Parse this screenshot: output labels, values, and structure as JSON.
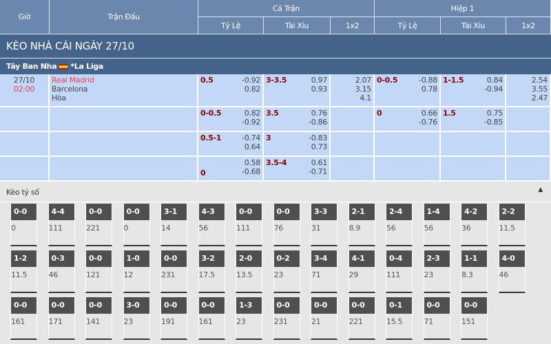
{
  "header": {
    "time": "Giờ",
    "match": "Trận Đấu",
    "full": "Cả Trận",
    "half": "Hiệp 1",
    "cols": [
      "Tỷ Lệ",
      "Tài Xỉu",
      "1x2",
      "Tỷ Lệ",
      "Tài Xỉu",
      "1x2"
    ]
  },
  "title": "KÈO NHÀ CÁI NGÀY 27/10",
  "league": {
    "country": "Tây Ban Nha",
    "name": "*La Liga",
    "flag": "spain-flag-icon"
  },
  "match": {
    "date": "27/10",
    "time": "02:00",
    "home": "Real Madrid",
    "away": "Barcelona",
    "draw": "Hòa"
  },
  "rows": [
    {
      "hdp": "0.5",
      "hdp_odds": [
        "-0.92",
        "0.82"
      ],
      "ou": "3-3.5",
      "ou_odds": [
        "0.97",
        "0.93"
      ],
      "x12": [
        "2.07",
        "3.15",
        "4.1"
      ],
      "h_hdp": "0-0.5",
      "h_hdp_odds": [
        "-0.88",
        "0.78"
      ],
      "h_ou": "1-1.5",
      "h_ou_odds": [
        "0.84",
        "-0.94"
      ],
      "h_x12": [
        "2.54",
        "3.55",
        "2.47"
      ]
    },
    {
      "hdp": "0-0.5",
      "hdp_odds": [
        "0.82",
        "-0.92"
      ],
      "ou": "3.5",
      "ou_odds": [
        "0.76",
        "-0.86"
      ],
      "x12": [],
      "h_hdp": "0",
      "h_hdp_odds": [
        "0.66",
        "-0.76"
      ],
      "h_ou": "1.5",
      "h_ou_odds": [
        "0.75",
        "-0.85"
      ],
      "h_x12": []
    },
    {
      "hdp": "0.5-1",
      "hdp_odds": [
        "-0.74",
        "0.64"
      ],
      "ou": "3",
      "ou_odds": [
        "-0.83",
        "0.73"
      ],
      "x12": [],
      "h_hdp": "",
      "h_hdp_odds": [],
      "h_ou": "",
      "h_ou_odds": [],
      "h_x12": []
    },
    {
      "hdp": "0",
      "hdp_bottom": true,
      "hdp_odds": [
        "0.58",
        "-0.68"
      ],
      "ou": "3.5-4",
      "ou_odds": [
        "0.61",
        "-0.71"
      ],
      "x12": [],
      "h_hdp": "",
      "h_hdp_odds": [],
      "h_ou": "",
      "h_ou_odds": [],
      "h_x12": []
    }
  ],
  "scores": {
    "label": "Kèo tỷ số",
    "collapse_icon": "triangle-up-icon",
    "items": [
      [
        "0-0",
        "0"
      ],
      [
        "4-4",
        "111"
      ],
      [
        "0-0",
        "221"
      ],
      [
        "0-0",
        "0"
      ],
      [
        "3-1",
        "14"
      ],
      [
        "4-3",
        "56"
      ],
      [
        "0-0",
        "111"
      ],
      [
        "0-0",
        "76"
      ],
      [
        "3-3",
        "31"
      ],
      [
        "2-1",
        "8.9"
      ],
      [
        "2-4",
        "56"
      ],
      [
        "1-4",
        "56"
      ],
      [
        "4-2",
        "36"
      ],
      [
        "2-2",
        "11.5"
      ],
      [
        "1-2",
        "11.5"
      ],
      [
        "0-3",
        "46"
      ],
      [
        "0-0",
        "121"
      ],
      [
        "1-0",
        "12"
      ],
      [
        "0-0",
        "231"
      ],
      [
        "3-2",
        "17.5"
      ],
      [
        "2-0",
        "13.5"
      ],
      [
        "0-2",
        "23"
      ],
      [
        "3-4",
        "71"
      ],
      [
        "4-1",
        "29"
      ],
      [
        "0-4",
        "111"
      ],
      [
        "2-3",
        "23"
      ],
      [
        "1-1",
        "8.3"
      ],
      [
        "4-0",
        "46"
      ],
      [
        "0-0",
        "161"
      ],
      [
        "0-0",
        "171"
      ],
      [
        "0-0",
        "141"
      ],
      [
        "3-0",
        "23"
      ],
      [
        "0-0",
        "191"
      ],
      [
        "0-0",
        "161"
      ],
      [
        "1-3",
        "23"
      ],
      [
        "0-0",
        "231"
      ],
      [
        "0-0",
        "21"
      ],
      [
        "0-0",
        "221"
      ],
      [
        "0-1",
        "15.5"
      ],
      [
        "0-0",
        "71"
      ],
      [
        "0-0",
        "151"
      ]
    ]
  }
}
